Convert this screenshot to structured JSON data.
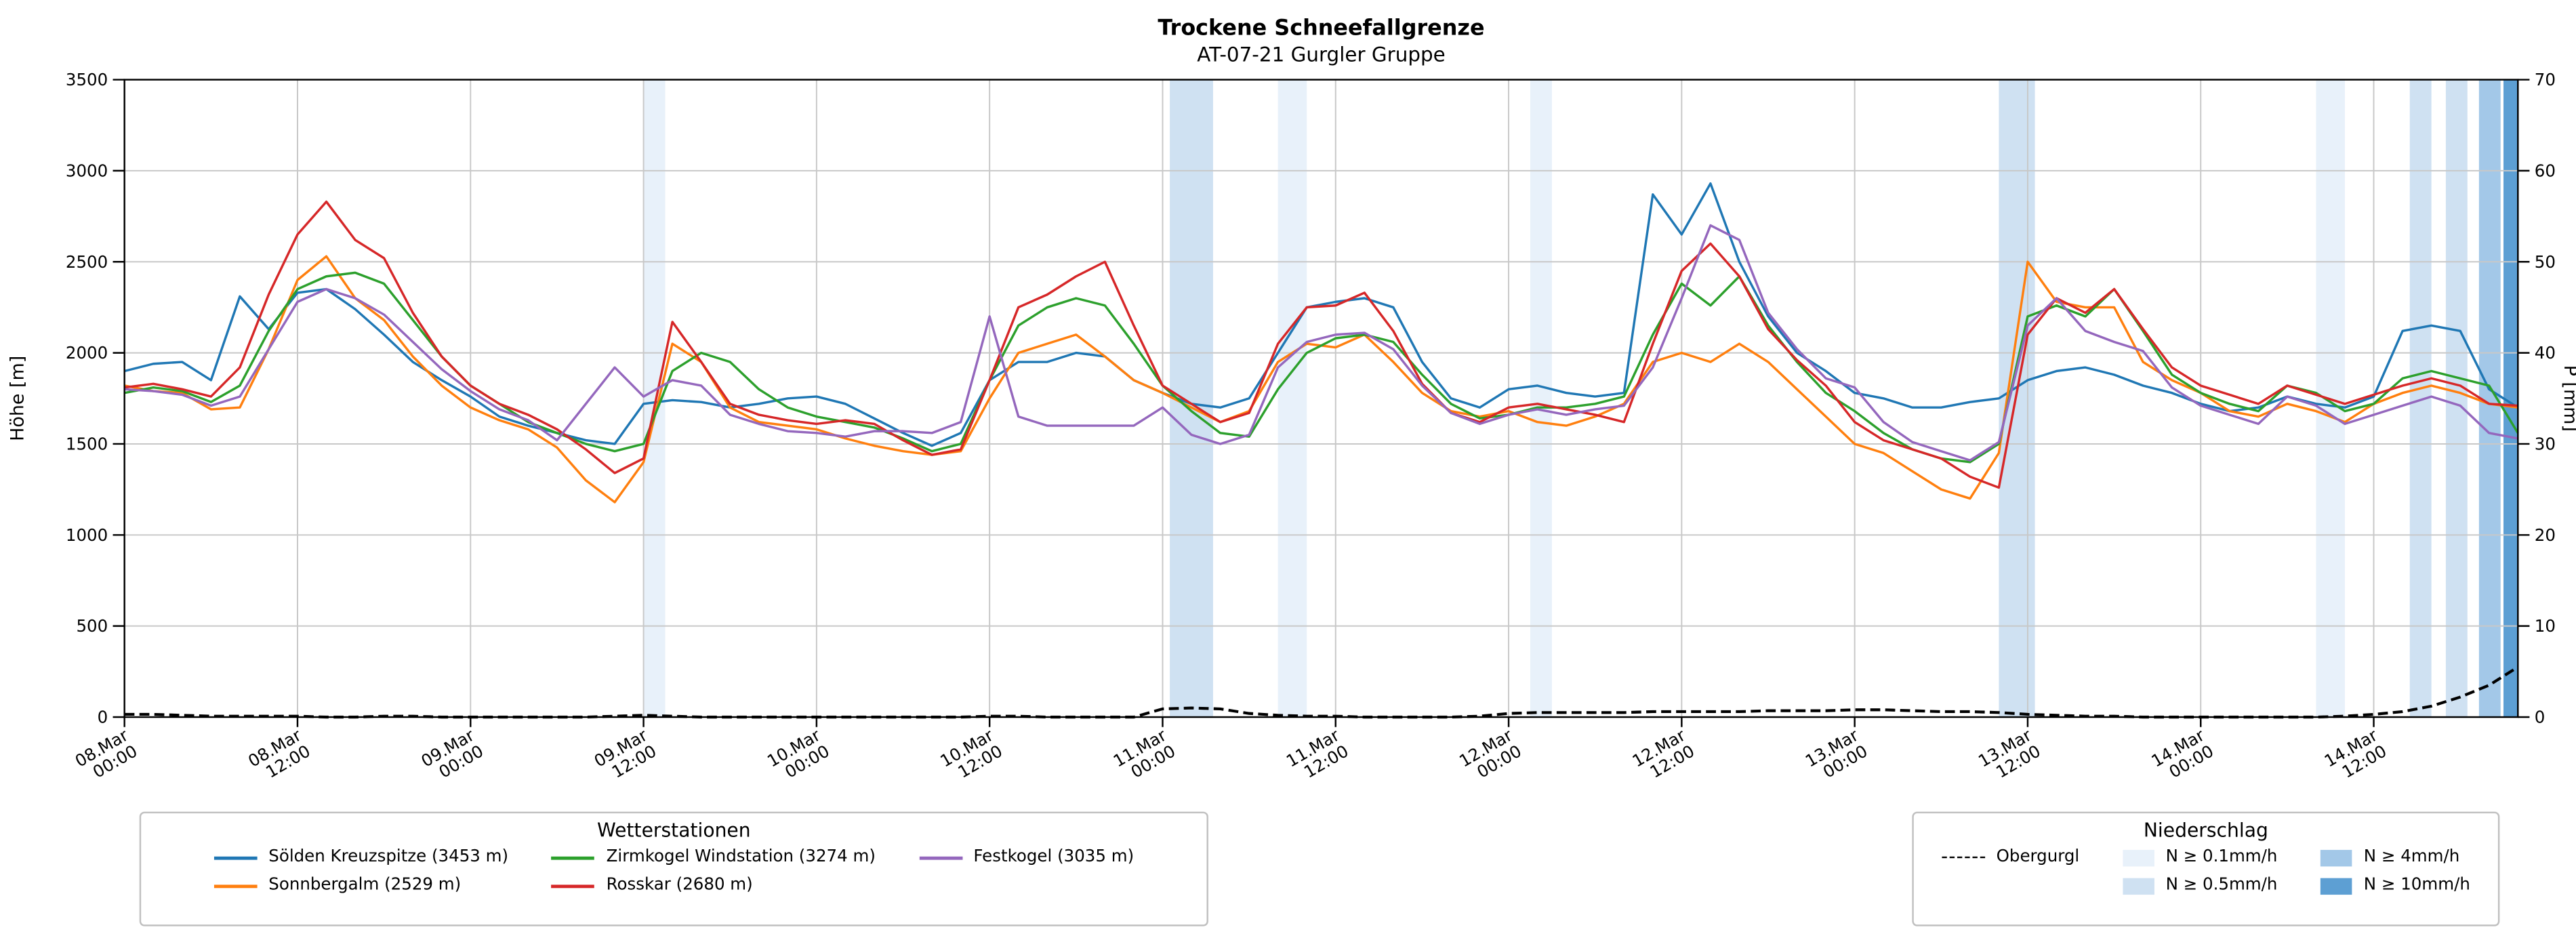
{
  "header": {
    "title": "Trockene Schneefallgrenze",
    "subtitle": "AT-07-21 Gurgler Gruppe"
  },
  "legend_stations": {
    "title": "Wetterstationen"
  },
  "legend_precip": {
    "title": "Niederschlag"
  },
  "chart_data": {
    "type": "line",
    "title": "Trockene Schneefallgrenze",
    "subtitle": "AT-07-21 Gurgler Gruppe",
    "grid": true,
    "x_axis": {
      "unit": "hours since 08.Mar 00:00",
      "step_hours": 2,
      "max_hour": 166,
      "ticks": [
        {
          "h": 0,
          "date": "08.Mar",
          "time": "00:00"
        },
        {
          "h": 12,
          "date": "08.Mar",
          "time": "12:00"
        },
        {
          "h": 24,
          "date": "09.Mar",
          "time": "00:00"
        },
        {
          "h": 36,
          "date": "09.Mar",
          "time": "12:00"
        },
        {
          "h": 48,
          "date": "10.Mar",
          "time": "00:00"
        },
        {
          "h": 60,
          "date": "10.Mar",
          "time": "12:00"
        },
        {
          "h": 72,
          "date": "11.Mar",
          "time": "00:00"
        },
        {
          "h": 84,
          "date": "11.Mar",
          "time": "12:00"
        },
        {
          "h": 96,
          "date": "12.Mar",
          "time": "00:00"
        },
        {
          "h": 108,
          "date": "12.Mar",
          "time": "12:00"
        },
        {
          "h": 120,
          "date": "13.Mar",
          "time": "00:00"
        },
        {
          "h": 132,
          "date": "13.Mar",
          "time": "12:00"
        },
        {
          "h": 144,
          "date": "14.Mar",
          "time": "00:00"
        },
        {
          "h": 156,
          "date": "14.Mar",
          "time": "12:00"
        }
      ]
    },
    "y_left": {
      "label": "Höhe [m]",
      "min": 0,
      "max": 3500,
      "tick_step": 500
    },
    "y_right": {
      "label": "P [mm]",
      "min": 0,
      "max": 70,
      "tick_step": 10
    },
    "series": [
      {
        "name": "Sölden Kreuzspitze (3453 m)",
        "color": "#1f77b4",
        "values": [
          1900,
          1940,
          1950,
          1850,
          2310,
          2130,
          2330,
          2350,
          2240,
          2100,
          1950,
          1850,
          1760,
          1650,
          1600,
          1560,
          1520,
          1500,
          1720,
          1740,
          1730,
          1700,
          1720,
          1750,
          1760,
          1720,
          1640,
          1560,
          1490,
          1560,
          1850,
          1950,
          1950,
          2000,
          1980,
          1850,
          1780,
          1720,
          1700,
          1750,
          2000,
          2250,
          2280,
          2300,
          2250,
          1950,
          1750,
          1700,
          1800,
          1820,
          1780,
          1760,
          1780,
          2870,
          2650,
          2930,
          2500,
          2200,
          2000,
          1900,
          1780,
          1750,
          1700,
          1700,
          1730,
          1750,
          1850,
          1900,
          1920,
          1880,
          1820,
          1780,
          1720,
          1680,
          1700,
          1760,
          1720,
          1700,
          1760,
          2120,
          2150,
          2120,
          1800,
          1700
        ]
      },
      {
        "name": "Sonnbergalm (2529 m)",
        "color": "#ff7f0e",
        "values": [
          1820,
          1790,
          1780,
          1690,
          1700,
          2020,
          2400,
          2530,
          2300,
          2180,
          1980,
          1820,
          1700,
          1630,
          1580,
          1480,
          1300,
          1180,
          1400,
          2050,
          1950,
          1700,
          1620,
          1600,
          1580,
          1530,
          1490,
          1460,
          1440,
          1460,
          1750,
          2000,
          2050,
          2100,
          1980,
          1850,
          1780,
          1700,
          1620,
          1680,
          1950,
          2050,
          2030,
          2100,
          1950,
          1780,
          1680,
          1650,
          1680,
          1620,
          1600,
          1650,
          1720,
          1950,
          2000,
          1950,
          2050,
          1950,
          1800,
          1650,
          1500,
          1450,
          1350,
          1250,
          1200,
          1450,
          2500,
          2280,
          2250,
          2250,
          1950,
          1850,
          1780,
          1680,
          1650,
          1720,
          1680,
          1620,
          1720,
          1780,
          1820,
          1780,
          1720,
          1700
        ]
      },
      {
        "name": "Zirmkogel Windstation (3274 m)",
        "color": "#2ca02c",
        "values": [
          1780,
          1810,
          1790,
          1730,
          1820,
          2120,
          2350,
          2420,
          2440,
          2380,
          2180,
          1980,
          1820,
          1720,
          1620,
          1560,
          1500,
          1460,
          1500,
          1900,
          2000,
          1950,
          1800,
          1700,
          1650,
          1620,
          1590,
          1530,
          1460,
          1500,
          1850,
          2150,
          2250,
          2300,
          2260,
          2050,
          1820,
          1680,
          1560,
          1540,
          1800,
          2000,
          2080,
          2100,
          2060,
          1880,
          1720,
          1640,
          1660,
          1700,
          1700,
          1720,
          1760,
          2100,
          2380,
          2260,
          2420,
          2150,
          1950,
          1780,
          1680,
          1560,
          1470,
          1420,
          1400,
          1500,
          2200,
          2260,
          2200,
          2350,
          2120,
          1880,
          1780,
          1720,
          1680,
          1820,
          1780,
          1680,
          1720,
          1860,
          1900,
          1860,
          1820,
          1560
        ]
      },
      {
        "name": "Rosskar (2680 m)",
        "color": "#d62728",
        "values": [
          1810,
          1830,
          1800,
          1760,
          1920,
          2320,
          2650,
          2830,
          2620,
          2520,
          2220,
          1980,
          1820,
          1720,
          1660,
          1580,
          1470,
          1340,
          1420,
          2170,
          1950,
          1720,
          1660,
          1630,
          1610,
          1630,
          1610,
          1520,
          1440,
          1470,
          1850,
          2250,
          2320,
          2420,
          2500,
          2150,
          1820,
          1720,
          1620,
          1670,
          2050,
          2250,
          2260,
          2330,
          2120,
          1830,
          1670,
          1620,
          1700,
          1720,
          1690,
          1660,
          1620,
          2050,
          2450,
          2600,
          2420,
          2130,
          1960,
          1820,
          1620,
          1520,
          1470,
          1420,
          1320,
          1260,
          2100,
          2300,
          2220,
          2350,
          2130,
          1920,
          1820,
          1770,
          1720,
          1820,
          1770,
          1720,
          1770,
          1820,
          1860,
          1820,
          1720,
          1710
        ]
      },
      {
        "name": "Festkogel (3035 m)",
        "color": "#9467bd",
        "values": [
          1800,
          1790,
          1770,
          1710,
          1760,
          2020,
          2280,
          2350,
          2300,
          2210,
          2060,
          1910,
          1790,
          1690,
          1630,
          1520,
          1720,
          1920,
          1760,
          1850,
          1820,
          1660,
          1610,
          1570,
          1560,
          1540,
          1570,
          1570,
          1560,
          1620,
          2200,
          1650,
          1600,
          1600,
          1600,
          1600,
          1700,
          1550,
          1500,
          1550,
          1920,
          2060,
          2100,
          2110,
          2020,
          1820,
          1670,
          1610,
          1660,
          1690,
          1660,
          1690,
          1710,
          1920,
          2300,
          2700,
          2620,
          2220,
          2020,
          1860,
          1810,
          1620,
          1510,
          1460,
          1410,
          1510,
          2150,
          2300,
          2120,
          2060,
          2010,
          1810,
          1710,
          1660,
          1610,
          1760,
          1710,
          1610,
          1660,
          1710,
          1760,
          1710,
          1560,
          1530
        ]
      }
    ],
    "obergurgl": {
      "name": "Obergurgl",
      "color": "#000000",
      "dashed": true,
      "axis": "right",
      "values": [
        0.3,
        0.3,
        0.2,
        0.1,
        0.1,
        0.1,
        0.1,
        0,
        0,
        0.1,
        0.1,
        0,
        0,
        0,
        0,
        0,
        0,
        0.1,
        0.2,
        0.1,
        0,
        0,
        0,
        0,
        0,
        0,
        0,
        0,
        0,
        0,
        0.1,
        0.1,
        0,
        0,
        0,
        0,
        0.9,
        1.0,
        0.9,
        0.4,
        0.2,
        0.1,
        0.1,
        0,
        0,
        0,
        0,
        0.1,
        0.4,
        0.5,
        0.5,
        0.5,
        0.5,
        0.6,
        0.6,
        0.6,
        0.6,
        0.7,
        0.7,
        0.7,
        0.8,
        0.8,
        0.7,
        0.6,
        0.6,
        0.5,
        0.3,
        0.2,
        0.1,
        0.1,
        0,
        0,
        0,
        0,
        0,
        0,
        0,
        0.1,
        0.3,
        0.6,
        1.2,
        2.2,
        3.5,
        5.5
      ]
    },
    "precip_levels": [
      {
        "label": "N ≥ 0.1mm/h",
        "color": "#e8f1fa"
      },
      {
        "label": "N ≥ 0.5mm/h",
        "color": "#cfe1f2"
      },
      {
        "label": "N ≥ 4mm/h",
        "color": "#a3c8e8"
      },
      {
        "label": "N ≥ 10mm/h",
        "color": "#5d9fd3"
      }
    ],
    "precip_bands": [
      {
        "start_h": 36,
        "end_h": 37.5,
        "level": 1
      },
      {
        "start_h": 72.5,
        "end_h": 75.5,
        "level": 2
      },
      {
        "start_h": 80,
        "end_h": 82,
        "level": 1
      },
      {
        "start_h": 97.5,
        "end_h": 99,
        "level": 1
      },
      {
        "start_h": 130,
        "end_h": 132.5,
        "level": 2
      },
      {
        "start_h": 152,
        "end_h": 154,
        "level": 1
      },
      {
        "start_h": 158.5,
        "end_h": 160,
        "level": 2
      },
      {
        "start_h": 161,
        "end_h": 162.5,
        "level": 2
      },
      {
        "start_h": 163.3,
        "end_h": 164.8,
        "level": 3
      },
      {
        "start_h": 165,
        "end_h": 166,
        "level": 4
      }
    ]
  }
}
